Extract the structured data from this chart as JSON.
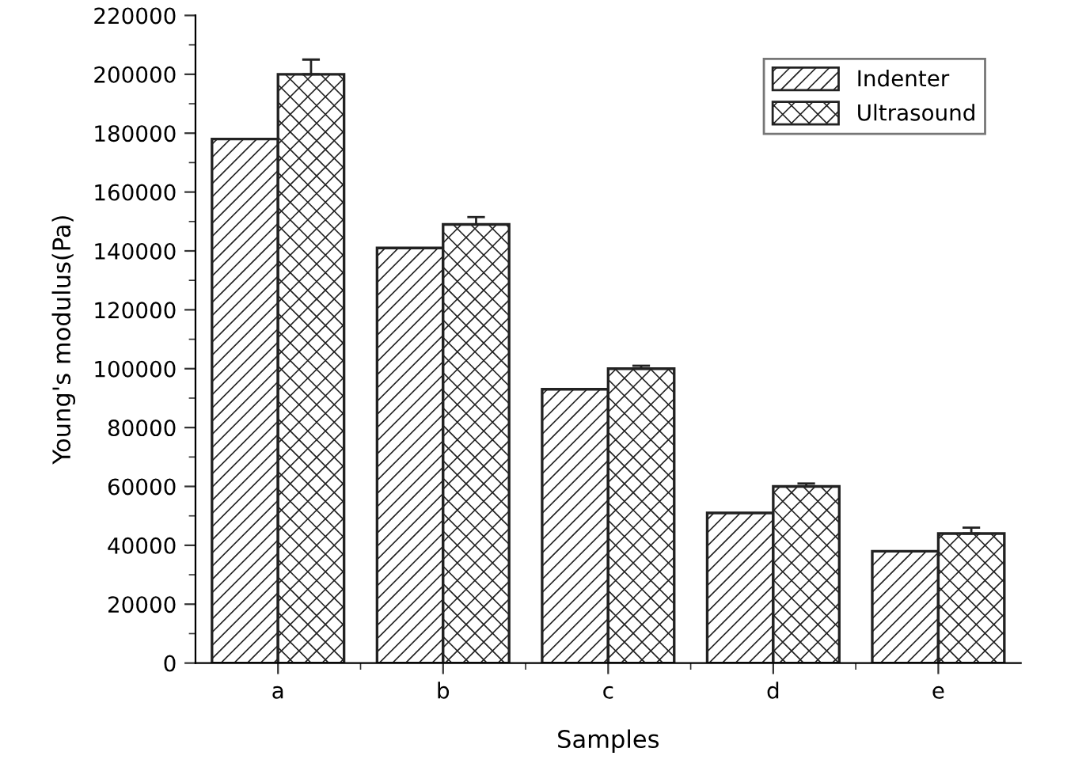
{
  "chart_data": {
    "type": "bar",
    "xlabel": "Samples",
    "ylabel": "Young's modulus(Pa)",
    "categories": [
      "a",
      "b",
      "c",
      "d",
      "e"
    ],
    "series": [
      {
        "name": "Indenter",
        "color": "#222222",
        "values": [
          178000,
          141000,
          93000,
          51000,
          38000
        ]
      },
      {
        "name": "Ultrasound",
        "color": "#222222",
        "values": [
          200000,
          149000,
          100000,
          60000,
          44000
        ],
        "errors": [
          [
            200000,
            205000
          ],
          [
            149000,
            151500
          ],
          [
            100000,
            101000
          ],
          [
            60000,
            61000
          ],
          [
            44000,
            46000
          ]
        ]
      }
    ],
    "ylim": [
      0,
      220000
    ],
    "yticks": [
      0,
      20000,
      40000,
      60000,
      80000,
      100000,
      120000,
      140000,
      160000,
      180000,
      200000,
      220000
    ],
    "grid": false,
    "legend": "top right"
  }
}
